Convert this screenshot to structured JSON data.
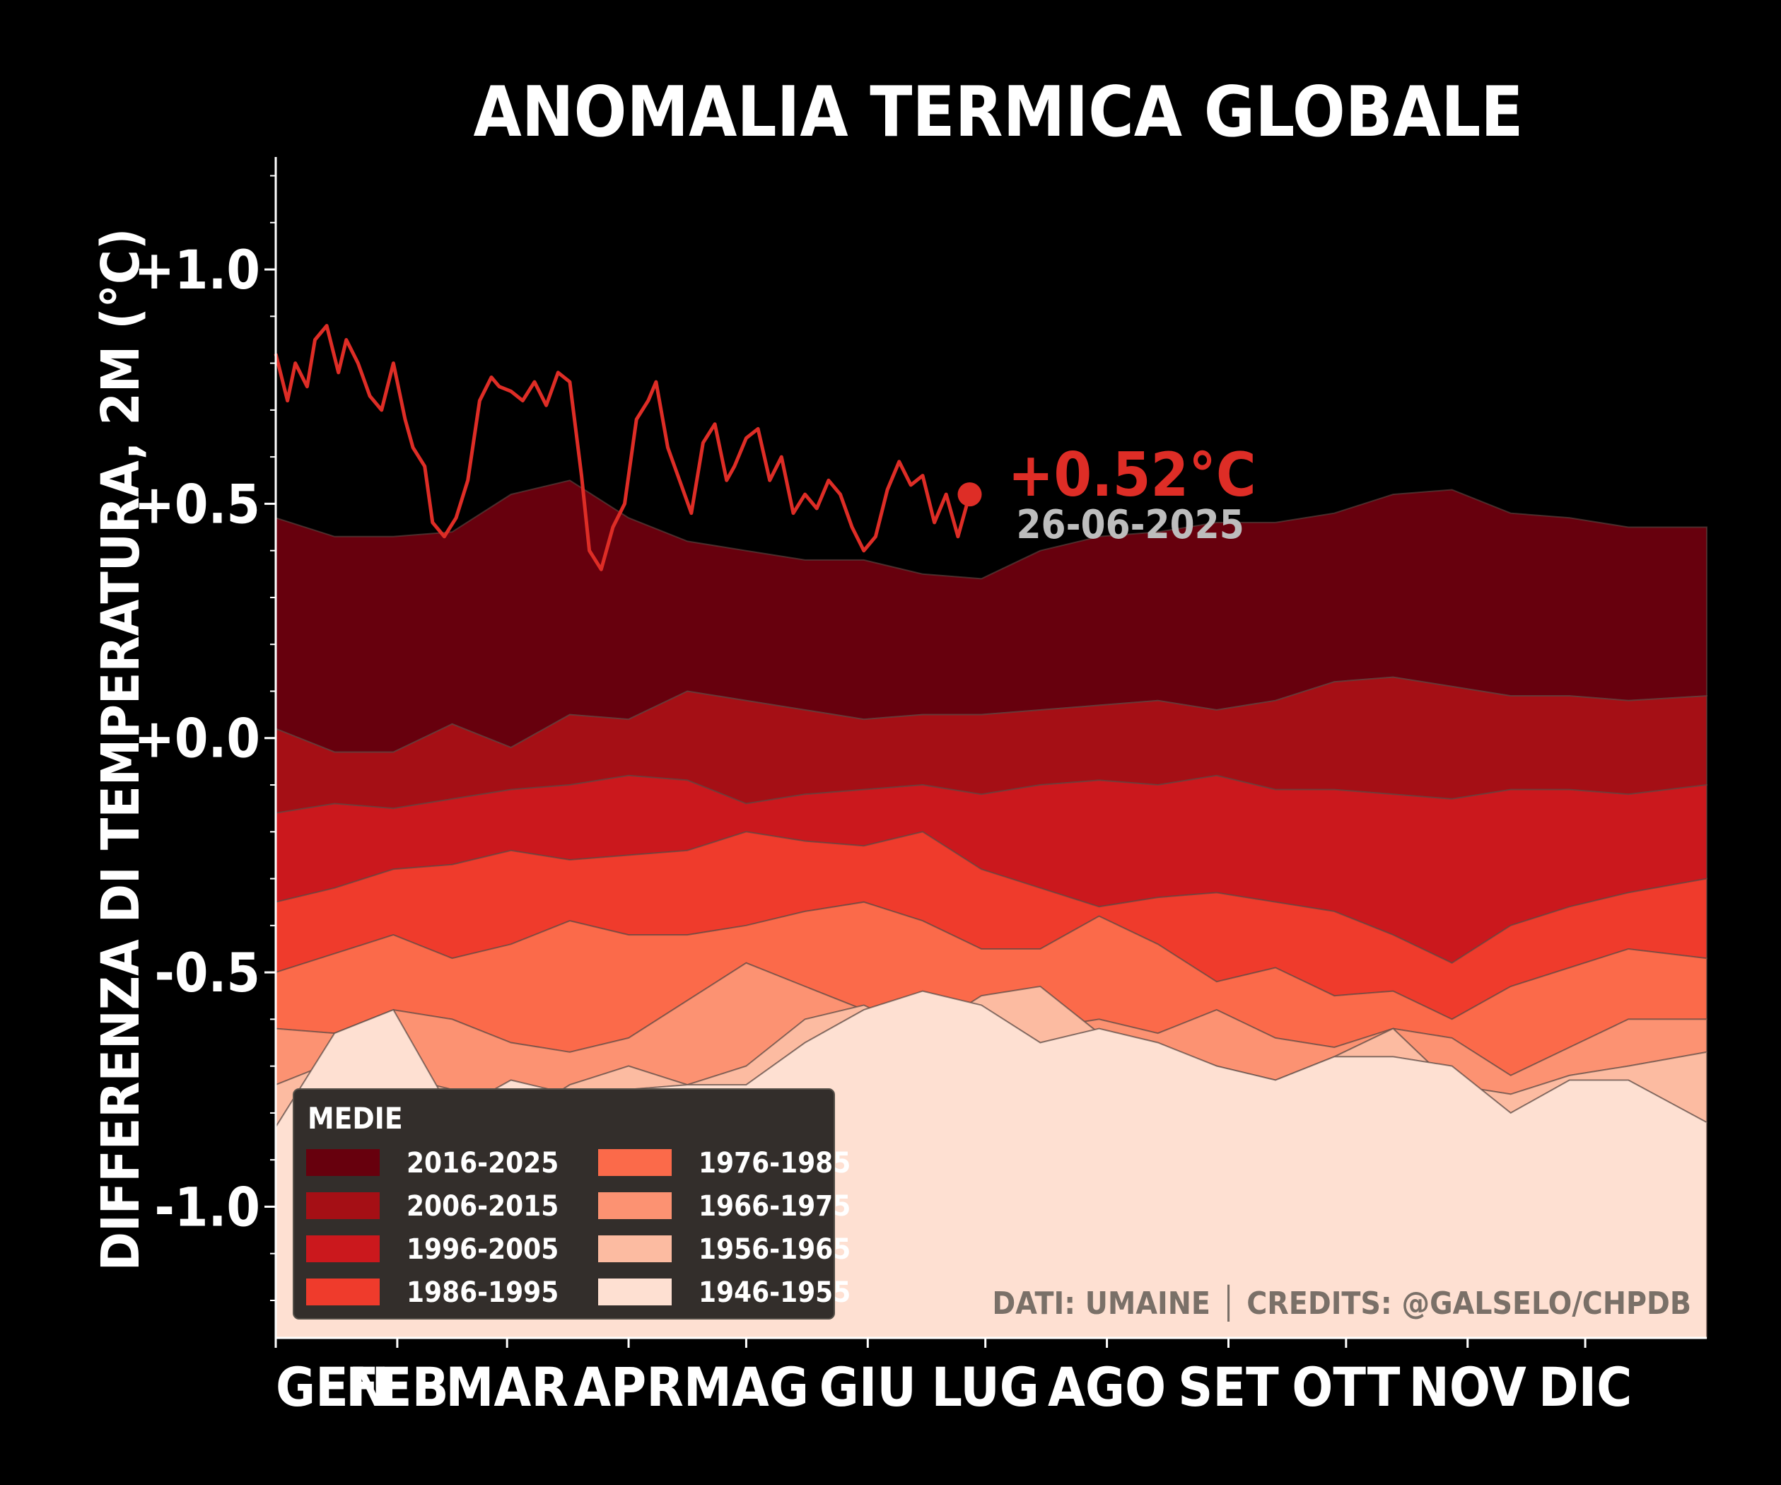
{
  "chart_data": {
    "type": "area",
    "title": "ANOMALIA TERMICA GLOBALE",
    "xlabel": "",
    "ylabel": "DIFFERENZA DI TEMPERATURA, 2M (°C)",
    "ylim": [
      -1.28,
      1.24
    ],
    "xlim": [
      0,
      365
    ],
    "y_ticks": [
      1.0,
      0.5,
      0.0,
      -0.5,
      -1.0
    ],
    "y_tick_labels": [
      "+1.0",
      "+0.5",
      "+0.0",
      "-0.5",
      "-1.0"
    ],
    "x_ticks": [
      0,
      31,
      59,
      90,
      120,
      151,
      181,
      212,
      243,
      273,
      304,
      334
    ],
    "x_tick_labels": [
      "GEN",
      "FEB",
      "MAR",
      "APR",
      "MAG",
      "GIU",
      "LUG",
      "AGO",
      "SET",
      "OTT",
      "NOV",
      "DIC"
    ],
    "band_x": [
      0,
      15,
      30,
      45,
      60,
      75,
      90,
      105,
      120,
      135,
      150,
      165,
      180,
      195,
      210,
      225,
      240,
      255,
      270,
      285,
      300,
      315,
      330,
      345,
      365
    ],
    "series": [
      {
        "name": "2016-2025",
        "color": "#67000d",
        "values": [
          0.47,
          0.43,
          0.43,
          0.44,
          0.52,
          0.55,
          0.47,
          0.42,
          0.4,
          0.38,
          0.38,
          0.35,
          0.34,
          0.4,
          0.43,
          0.44,
          0.46,
          0.46,
          0.48,
          0.52,
          0.53,
          0.48,
          0.47,
          0.45,
          0.45
        ]
      },
      {
        "name": "2006-2015",
        "color": "#a50f15",
        "values": [
          0.02,
          -0.03,
          -0.03,
          0.03,
          -0.02,
          0.05,
          0.04,
          0.1,
          0.08,
          0.06,
          0.04,
          0.05,
          0.05,
          0.06,
          0.07,
          0.08,
          0.06,
          0.08,
          0.12,
          0.13,
          0.11,
          0.09,
          0.09,
          0.08,
          0.09
        ]
      },
      {
        "name": "1996-2005",
        "color": "#cb181d",
        "values": [
          -0.16,
          -0.14,
          -0.15,
          -0.13,
          -0.11,
          -0.1,
          -0.08,
          -0.09,
          -0.14,
          -0.12,
          -0.11,
          -0.1,
          -0.12,
          -0.1,
          -0.09,
          -0.1,
          -0.08,
          -0.11,
          -0.11,
          -0.12,
          -0.13,
          -0.11,
          -0.11,
          -0.12,
          -0.1
        ]
      },
      {
        "name": "1986-1995",
        "color": "#ef3b2c",
        "values": [
          -0.35,
          -0.32,
          -0.28,
          -0.27,
          -0.24,
          -0.26,
          -0.25,
          -0.24,
          -0.2,
          -0.22,
          -0.23,
          -0.2,
          -0.28,
          -0.32,
          -0.36,
          -0.34,
          -0.33,
          -0.35,
          -0.37,
          -0.42,
          -0.48,
          -0.4,
          -0.36,
          -0.33,
          -0.3
        ]
      },
      {
        "name": "1976-1985",
        "color": "#fb6a4a",
        "values": [
          -0.5,
          -0.46,
          -0.42,
          -0.47,
          -0.44,
          -0.39,
          -0.42,
          -0.42,
          -0.4,
          -0.37,
          -0.35,
          -0.39,
          -0.45,
          -0.45,
          -0.38,
          -0.44,
          -0.52,
          -0.49,
          -0.55,
          -0.54,
          -0.6,
          -0.53,
          -0.49,
          -0.45,
          -0.47
        ]
      },
      {
        "name": "1966-1975",
        "color": "#fc9272",
        "values": [
          -0.62,
          -0.63,
          -0.58,
          -0.6,
          -0.65,
          -0.67,
          -0.64,
          -0.56,
          -0.48,
          -0.53,
          -0.58,
          -0.61,
          -0.58,
          -0.62,
          -0.6,
          -0.63,
          -0.58,
          -0.64,
          -0.66,
          -0.62,
          -0.64,
          -0.72,
          -0.66,
          -0.6,
          -0.6
        ]
      },
      {
        "name": "1956-1965",
        "color": "#fcbba1",
        "values": [
          -0.74,
          -0.69,
          -0.72,
          -0.75,
          -0.82,
          -0.74,
          -0.7,
          -0.74,
          -0.7,
          -0.6,
          -0.57,
          -0.63,
          -0.55,
          -0.53,
          -0.63,
          -0.66,
          -0.7,
          -0.73,
          -0.68,
          -0.62,
          -0.74,
          -0.76,
          -0.72,
          -0.7,
          -0.67
        ]
      },
      {
        "name": "1946-1955",
        "color": "#fee0d2",
        "values": [
          -0.83,
          -0.63,
          -0.58,
          -0.8,
          -0.73,
          -0.76,
          -0.75,
          -0.74,
          -0.74,
          -0.65,
          -0.58,
          -0.54,
          -0.57,
          -0.65,
          -0.62,
          -0.65,
          -0.7,
          -0.73,
          -0.68,
          -0.68,
          -0.7,
          -0.8,
          -0.73,
          -0.73,
          -0.82
        ]
      }
    ],
    "current_year": {
      "color": "#de2d26",
      "x": [
        0,
        3,
        5,
        8,
        10,
        13,
        16,
        18,
        21,
        24,
        27,
        30,
        33,
        35,
        38,
        40,
        43,
        46,
        49,
        52,
        55,
        57,
        60,
        63,
        66,
        69,
        72,
        75,
        78,
        80,
        83,
        86,
        89,
        92,
        95,
        97,
        100,
        103,
        106,
        109,
        112,
        115,
        117,
        120,
        123,
        126,
        129,
        132,
        135,
        138,
        141,
        144,
        147,
        150,
        153,
        156,
        159,
        162,
        165,
        168,
        171,
        174,
        177
      ],
      "y": [
        0.82,
        0.72,
        0.8,
        0.75,
        0.85,
        0.88,
        0.78,
        0.85,
        0.8,
        0.73,
        0.7,
        0.8,
        0.68,
        0.62,
        0.58,
        0.46,
        0.43,
        0.47,
        0.55,
        0.72,
        0.77,
        0.75,
        0.74,
        0.72,
        0.76,
        0.71,
        0.78,
        0.76,
        0.56,
        0.4,
        0.36,
        0.45,
        0.5,
        0.68,
        0.72,
        0.76,
        0.62,
        0.55,
        0.48,
        0.63,
        0.67,
        0.55,
        0.58,
        0.64,
        0.66,
        0.55,
        0.6,
        0.48,
        0.52,
        0.49,
        0.55,
        0.52,
        0.45,
        0.4,
        0.43,
        0.53,
        0.59,
        0.54,
        0.56,
        0.46,
        0.52,
        0.43,
        0.52
      ]
    },
    "annotation": {
      "value_label": "+0.52°C",
      "date_label": "26-06-2025",
      "x": 177,
      "y": 0.52
    },
    "legend": {
      "title": "MEDIE",
      "position": "lower-left",
      "columns": 2
    },
    "grid": false,
    "credits": "DATI: UMAINE │ CREDITS: @GALSELO/CHPDB"
  }
}
